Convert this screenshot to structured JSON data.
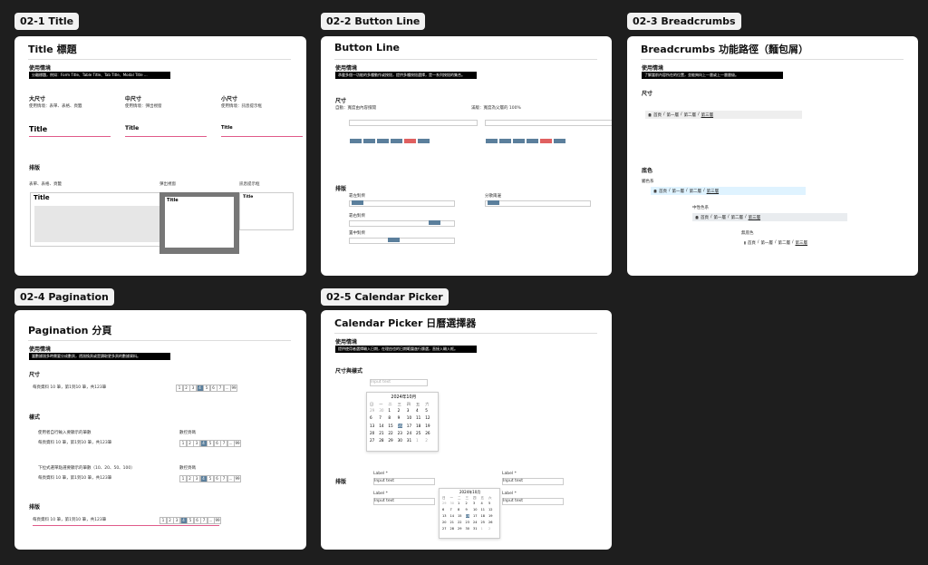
{
  "panels": [
    {
      "tag": "02-1 Title",
      "title": "Title 標題",
      "usage_heading": "使用情境",
      "usage_text": "分離標題，例如：Form Title、Table Title、Tab Title、Modal Title ...",
      "sizes": [
        "大尺寸",
        "中尺寸",
        "小尺寸"
      ],
      "size_notes": [
        "使用情境：表單、表格、頁籤",
        "使用情境：彈出視窗",
        "使用情境：訊息提示框"
      ],
      "sample_title": "Title",
      "layout_heading": "排版",
      "layouts": [
        "表單、表格、頁籤",
        "彈出視窗",
        "訊息提示框"
      ]
    },
    {
      "tag": "02-2 Button Line",
      "title": "Button Line",
      "usage_heading": "使用情境",
      "usage_text": "承載多個一功能的多種動作或按鈕，提供多種按鈕選擇，是一系列按鈕的集合。",
      "size_heading": "尺寸",
      "size_notes": [
        "自動：寬度由內容撐開",
        "滿版：寬度為父層的 100%"
      ],
      "layout_heading": "排版",
      "layouts": [
        "靠左對齊",
        "靠右對齊",
        "置中對齊",
        "分散兩邊"
      ]
    },
    {
      "tag": "02-3 Breadcrumbs",
      "title": "Breadcrumbs 功能路徑（麵包屑）",
      "usage_heading": "使用情境",
      "usage_text": "了解當前內容所在的位置，並能夠向上一層或上一層層級。",
      "size_heading": "尺寸",
      "color_heading": "底色",
      "color_labels": [
        "觸色系",
        "中性色系",
        "無底色"
      ],
      "crumbs": [
        "首頁",
        "第一層",
        "第二層",
        "第三層"
      ],
      "separator": "/"
    },
    {
      "tag": "02-4 Pagination",
      "title": "Pagination 分頁",
      "usage_heading": "使用情境",
      "usage_text": "當數據過多時需要分成數頁，透過換頁或是讀取更多頁的數據資料。",
      "size_heading": "尺寸",
      "summary": "每頁資料 10 筆，第1到10 筆，共123筆",
      "style_heading": "樣式",
      "style_notes": [
        "使用者自行輸入要顯示的筆數",
        "下拉式選單點選要顯示的筆數（10、20、50、100）"
      ],
      "pager_labels": [
        "數控頁碼",
        "數控頁碼"
      ],
      "layout_heading": "排版",
      "pages": [
        "1",
        "2",
        "3",
        "4",
        "5",
        "6",
        "7",
        "...",
        "99"
      ]
    },
    {
      "tag": "02-5 Calendar Picker",
      "title": "Calendar Picker 日曆選擇器",
      "usage_heading": "使用情境",
      "usage_text": "提供使用者選擇輸入日期，在理由也的日期範圍進行篩選，直接入輸入框。",
      "size_heading": "尺寸與樣式",
      "layout_heading": "排版",
      "month": "2024年10月",
      "weekdays": [
        "日",
        "一",
        "二",
        "三",
        "四",
        "五",
        "六"
      ],
      "days": [
        29,
        30,
        1,
        2,
        3,
        4,
        5,
        6,
        7,
        8,
        9,
        10,
        11,
        12,
        13,
        14,
        15,
        16,
        17,
        18,
        19,
        20,
        21,
        22,
        23,
        24,
        25,
        26,
        27,
        28,
        29,
        30,
        31,
        1,
        2
      ],
      "field_label": "Label *",
      "placeholder": "Input text"
    }
  ]
}
